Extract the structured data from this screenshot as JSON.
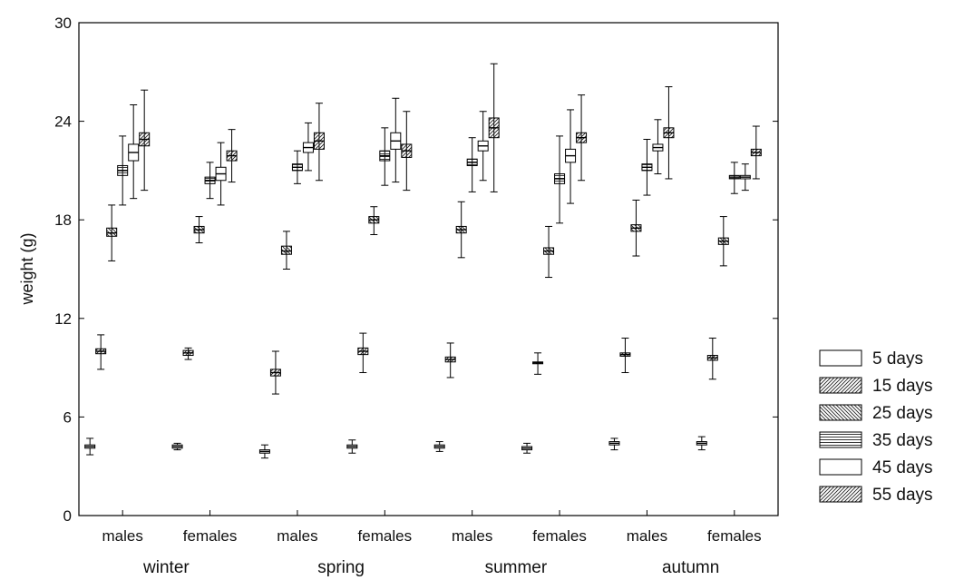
{
  "chart_data": {
    "type": "box",
    "title": "",
    "ylabel": "weight (g)",
    "xlabel": "",
    "ylim": [
      0,
      30
    ],
    "yticks": [
      0,
      6,
      12,
      18,
      24,
      30
    ],
    "grid": false,
    "legend_position": "right",
    "groups": [
      {
        "label": "males",
        "season": "winter"
      },
      {
        "label": "females",
        "season": "winter"
      },
      {
        "label": "males",
        "season": "spring"
      },
      {
        "label": "females",
        "season": "spring"
      },
      {
        "label": "males",
        "season": "summer"
      },
      {
        "label": "females",
        "season": "summer"
      },
      {
        "label": "males",
        "season": "autumn"
      },
      {
        "label": "females",
        "season": "autumn"
      }
    ],
    "seasons": [
      "winter",
      "spring",
      "summer",
      "autumn"
    ],
    "series": [
      {
        "name": "5 days",
        "pattern": "blank",
        "stats": [
          {
            "mean": 4.2,
            "box_low": 4.1,
            "box_high": 4.3,
            "whisker_low": 3.7,
            "whisker_high": 4.7
          },
          {
            "mean": 4.2,
            "box_low": 4.1,
            "box_high": 4.3,
            "whisker_low": 4.0,
            "whisker_high": 4.4
          },
          {
            "mean": 3.9,
            "box_low": 3.8,
            "box_high": 4.0,
            "whisker_low": 3.5,
            "whisker_high": 4.3
          },
          {
            "mean": 4.2,
            "box_low": 4.1,
            "box_high": 4.3,
            "whisker_low": 3.8,
            "whisker_high": 4.6
          },
          {
            "mean": 4.2,
            "box_low": 4.1,
            "box_high": 4.3,
            "whisker_low": 3.9,
            "whisker_high": 4.5
          },
          {
            "mean": 4.1,
            "box_low": 4.0,
            "box_high": 4.2,
            "whisker_low": 3.8,
            "whisker_high": 4.4
          },
          {
            "mean": 4.4,
            "box_low": 4.3,
            "box_high": 4.5,
            "whisker_low": 4.0,
            "whisker_high": 4.7
          },
          {
            "mean": 4.4,
            "box_low": 4.3,
            "box_high": 4.5,
            "whisker_low": 4.0,
            "whisker_high": 4.8
          }
        ]
      },
      {
        "name": "15 days",
        "pattern": "diag-right",
        "stats": [
          {
            "mean": 10.0,
            "box_low": 9.85,
            "box_high": 10.15,
            "whisker_low": 8.9,
            "whisker_high": 11.0
          },
          {
            "mean": 9.9,
            "box_low": 9.75,
            "box_high": 10.05,
            "whisker_low": 9.5,
            "whisker_high": 10.2
          },
          {
            "mean": 8.7,
            "box_low": 8.5,
            "box_high": 8.9,
            "whisker_low": 7.4,
            "whisker_high": 10.0
          },
          {
            "mean": 10.0,
            "box_low": 9.8,
            "box_high": 10.2,
            "whisker_low": 8.7,
            "whisker_high": 11.1
          },
          {
            "mean": 9.5,
            "box_low": 9.35,
            "box_high": 9.65,
            "whisker_low": 8.4,
            "whisker_high": 10.5
          },
          {
            "mean": 9.3,
            "box_low": 9.25,
            "box_high": 9.35,
            "whisker_low": 8.6,
            "whisker_high": 9.9
          },
          {
            "mean": 9.8,
            "box_low": 9.7,
            "box_high": 9.9,
            "whisker_low": 8.7,
            "whisker_high": 10.8
          },
          {
            "mean": 9.6,
            "box_low": 9.45,
            "box_high": 9.75,
            "whisker_low": 8.3,
            "whisker_high": 10.8
          }
        ]
      },
      {
        "name": "25 days",
        "pattern": "diag-left",
        "stats": [
          {
            "mean": 17.2,
            "box_low": 17.0,
            "box_high": 17.5,
            "whisker_low": 15.5,
            "whisker_high": 18.9
          },
          {
            "mean": 17.4,
            "box_low": 17.2,
            "box_high": 17.6,
            "whisker_low": 16.6,
            "whisker_high": 18.2
          },
          {
            "mean": 16.1,
            "box_low": 15.9,
            "box_high": 16.4,
            "whisker_low": 15.0,
            "whisker_high": 17.3
          },
          {
            "mean": 18.0,
            "box_low": 17.8,
            "box_high": 18.2,
            "whisker_low": 17.1,
            "whisker_high": 18.8
          },
          {
            "mean": 17.4,
            "box_low": 17.2,
            "box_high": 17.6,
            "whisker_low": 15.7,
            "whisker_high": 19.1
          },
          {
            "mean": 16.1,
            "box_low": 15.9,
            "box_high": 16.3,
            "whisker_low": 14.5,
            "whisker_high": 17.6
          },
          {
            "mean": 17.5,
            "box_low": 17.3,
            "box_high": 17.7,
            "whisker_low": 15.8,
            "whisker_high": 19.2
          },
          {
            "mean": 16.7,
            "box_low": 16.5,
            "box_high": 16.9,
            "whisker_low": 15.2,
            "whisker_high": 18.2
          }
        ]
      },
      {
        "name": "35 days",
        "pattern": "horizontal",
        "stats": [
          {
            "mean": 21.0,
            "box_low": 20.7,
            "box_high": 21.3,
            "whisker_low": 18.9,
            "whisker_high": 23.1
          },
          {
            "mean": 20.4,
            "box_low": 20.2,
            "box_high": 20.6,
            "whisker_low": 19.3,
            "whisker_high": 21.5
          },
          {
            "mean": 21.2,
            "box_low": 21.0,
            "box_high": 21.4,
            "whisker_low": 20.2,
            "whisker_high": 22.2
          },
          {
            "mean": 21.9,
            "box_low": 21.6,
            "box_high": 22.2,
            "whisker_low": 20.1,
            "whisker_high": 23.6
          },
          {
            "mean": 21.5,
            "box_low": 21.3,
            "box_high": 21.7,
            "whisker_low": 19.7,
            "whisker_high": 23.0
          },
          {
            "mean": 20.5,
            "box_low": 20.2,
            "box_high": 20.8,
            "whisker_low": 17.8,
            "whisker_high": 23.1
          },
          {
            "mean": 21.2,
            "box_low": 21.0,
            "box_high": 21.4,
            "whisker_low": 19.5,
            "whisker_high": 22.9
          },
          {
            "mean": 20.6,
            "box_low": 20.5,
            "box_high": 20.7,
            "whisker_low": 19.6,
            "whisker_high": 21.5
          }
        ]
      },
      {
        "name": "45 days",
        "pattern": "blank",
        "stats": [
          {
            "mean": 22.1,
            "box_low": 21.6,
            "box_high": 22.6,
            "whisker_low": 19.3,
            "whisker_high": 25.0
          },
          {
            "mean": 20.8,
            "box_low": 20.4,
            "box_high": 21.2,
            "whisker_low": 18.9,
            "whisker_high": 22.7
          },
          {
            "mean": 22.4,
            "box_low": 22.1,
            "box_high": 22.7,
            "whisker_low": 21.0,
            "whisker_high": 23.9
          },
          {
            "mean": 22.8,
            "box_low": 22.3,
            "box_high": 23.3,
            "whisker_low": 20.3,
            "whisker_high": 25.4
          },
          {
            "mean": 22.5,
            "box_low": 22.2,
            "box_high": 22.8,
            "whisker_low": 20.4,
            "whisker_high": 24.6
          },
          {
            "mean": 21.9,
            "box_low": 21.5,
            "box_high": 22.3,
            "whisker_low": 19.0,
            "whisker_high": 24.7
          },
          {
            "mean": 22.4,
            "box_low": 22.2,
            "box_high": 22.6,
            "whisker_low": 20.8,
            "whisker_high": 24.1
          },
          {
            "mean": 20.6,
            "box_low": 20.5,
            "box_high": 20.7,
            "whisker_low": 19.8,
            "whisker_high": 21.4
          }
        ]
      },
      {
        "name": "55 days",
        "pattern": "diag-right",
        "stats": [
          {
            "mean": 22.9,
            "box_low": 22.5,
            "box_high": 23.3,
            "whisker_low": 19.8,
            "whisker_high": 25.9
          },
          {
            "mean": 21.9,
            "box_low": 21.6,
            "box_high": 22.2,
            "whisker_low": 20.3,
            "whisker_high": 23.5
          },
          {
            "mean": 22.8,
            "box_low": 22.3,
            "box_high": 23.3,
            "whisker_low": 20.4,
            "whisker_high": 25.1
          },
          {
            "mean": 22.2,
            "box_low": 21.8,
            "box_high": 22.6,
            "whisker_low": 19.8,
            "whisker_high": 24.6
          },
          {
            "mean": 23.6,
            "box_low": 23.0,
            "box_high": 24.2,
            "whisker_low": 19.7,
            "whisker_high": 27.5
          },
          {
            "mean": 23.0,
            "box_low": 22.7,
            "box_high": 23.3,
            "whisker_low": 20.4,
            "whisker_high": 25.6
          },
          {
            "mean": 23.3,
            "box_low": 23.0,
            "box_high": 23.6,
            "whisker_low": 20.5,
            "whisker_high": 26.1
          },
          {
            "mean": 22.1,
            "box_low": 21.9,
            "box_high": 22.3,
            "whisker_low": 20.5,
            "whisker_high": 23.7
          }
        ]
      }
    ]
  }
}
